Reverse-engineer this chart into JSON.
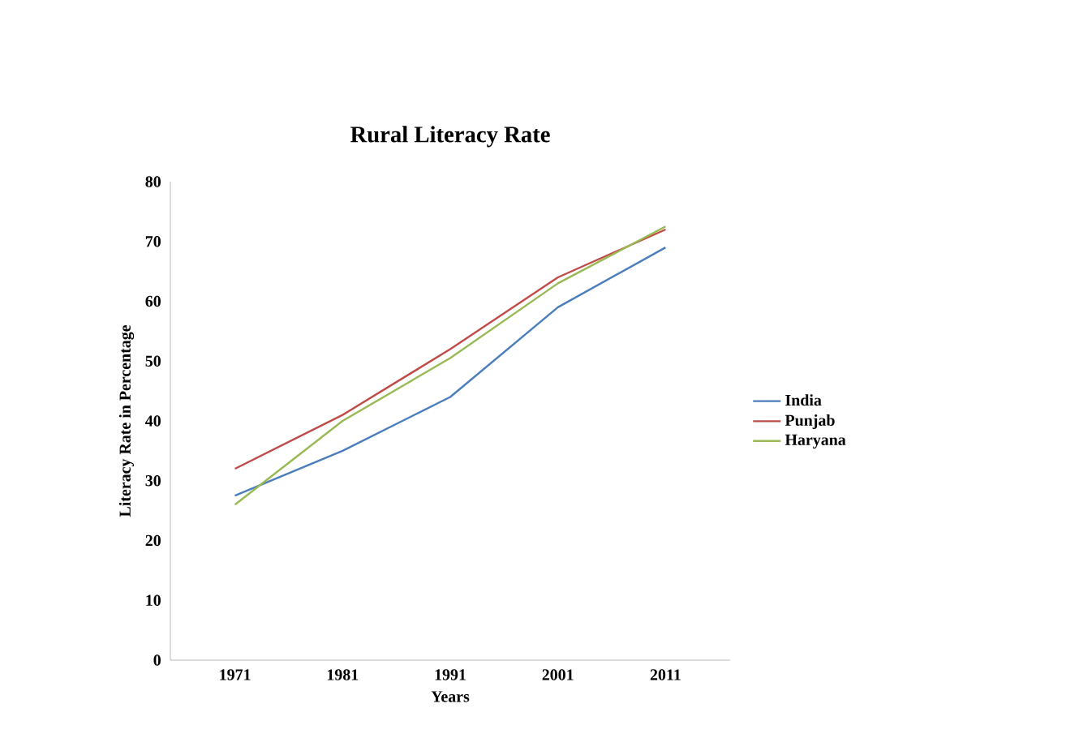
{
  "chart_data": {
    "type": "line",
    "title": "Rural Literacy Rate",
    "xlabel": "Years",
    "ylabel": "Literacy Rate in Percentage",
    "categories": [
      "1971",
      "1981",
      "1991",
      "2001",
      "2011"
    ],
    "series": [
      {
        "name": "India",
        "color": "#4a7ebb",
        "values": [
          27.5,
          35,
          44,
          59,
          69
        ]
      },
      {
        "name": "Punjab",
        "color": "#be4b48",
        "values": [
          32,
          41,
          52,
          64,
          72
        ]
      },
      {
        "name": "Haryana",
        "color": "#98b954",
        "values": [
          26,
          40,
          50.5,
          63,
          72.5
        ]
      }
    ],
    "ylim": [
      0,
      80
    ],
    "yticks": [
      0,
      10,
      20,
      30,
      40,
      50,
      60,
      70,
      80
    ],
    "grid": false,
    "legend": "right",
    "marker": "none",
    "line_style": "solid"
  }
}
